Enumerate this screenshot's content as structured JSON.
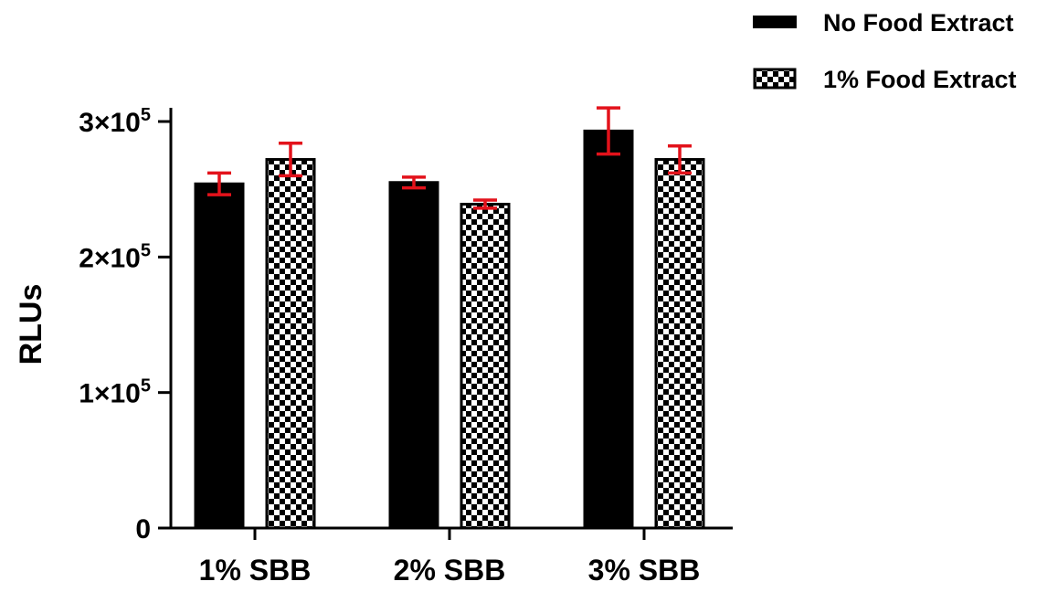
{
  "chart_data": {
    "type": "bar",
    "categories": [
      "1% SBB",
      "2% SBB",
      "3% SBB"
    ],
    "series": [
      {
        "name": "No Food Extract",
        "values": [
          254000,
          255000,
          293000
        ],
        "errors": [
          8000,
          4000,
          17000
        ],
        "fill": "solid"
      },
      {
        "name": "1% Food Extract",
        "values": [
          272000,
          239000,
          272000
        ],
        "errors": [
          12000,
          3000,
          10000
        ],
        "fill": "checker"
      }
    ],
    "title": "",
    "xlabel": "",
    "ylabel": "RLUs",
    "ylim": [
      0,
      300000
    ],
    "yticks": [
      {
        "value": 0,
        "label": "0"
      },
      {
        "value": 100000,
        "label": "1×10",
        "exp": "5"
      },
      {
        "value": 200000,
        "label": "2×10",
        "exp": "5"
      },
      {
        "value": 300000,
        "label": "3×10",
        "exp": "5"
      }
    ],
    "legend_position": "top-right",
    "grid": false,
    "colors": {
      "bar": "#000000",
      "error_bar": "#e3121b",
      "axis": "#000000"
    }
  }
}
